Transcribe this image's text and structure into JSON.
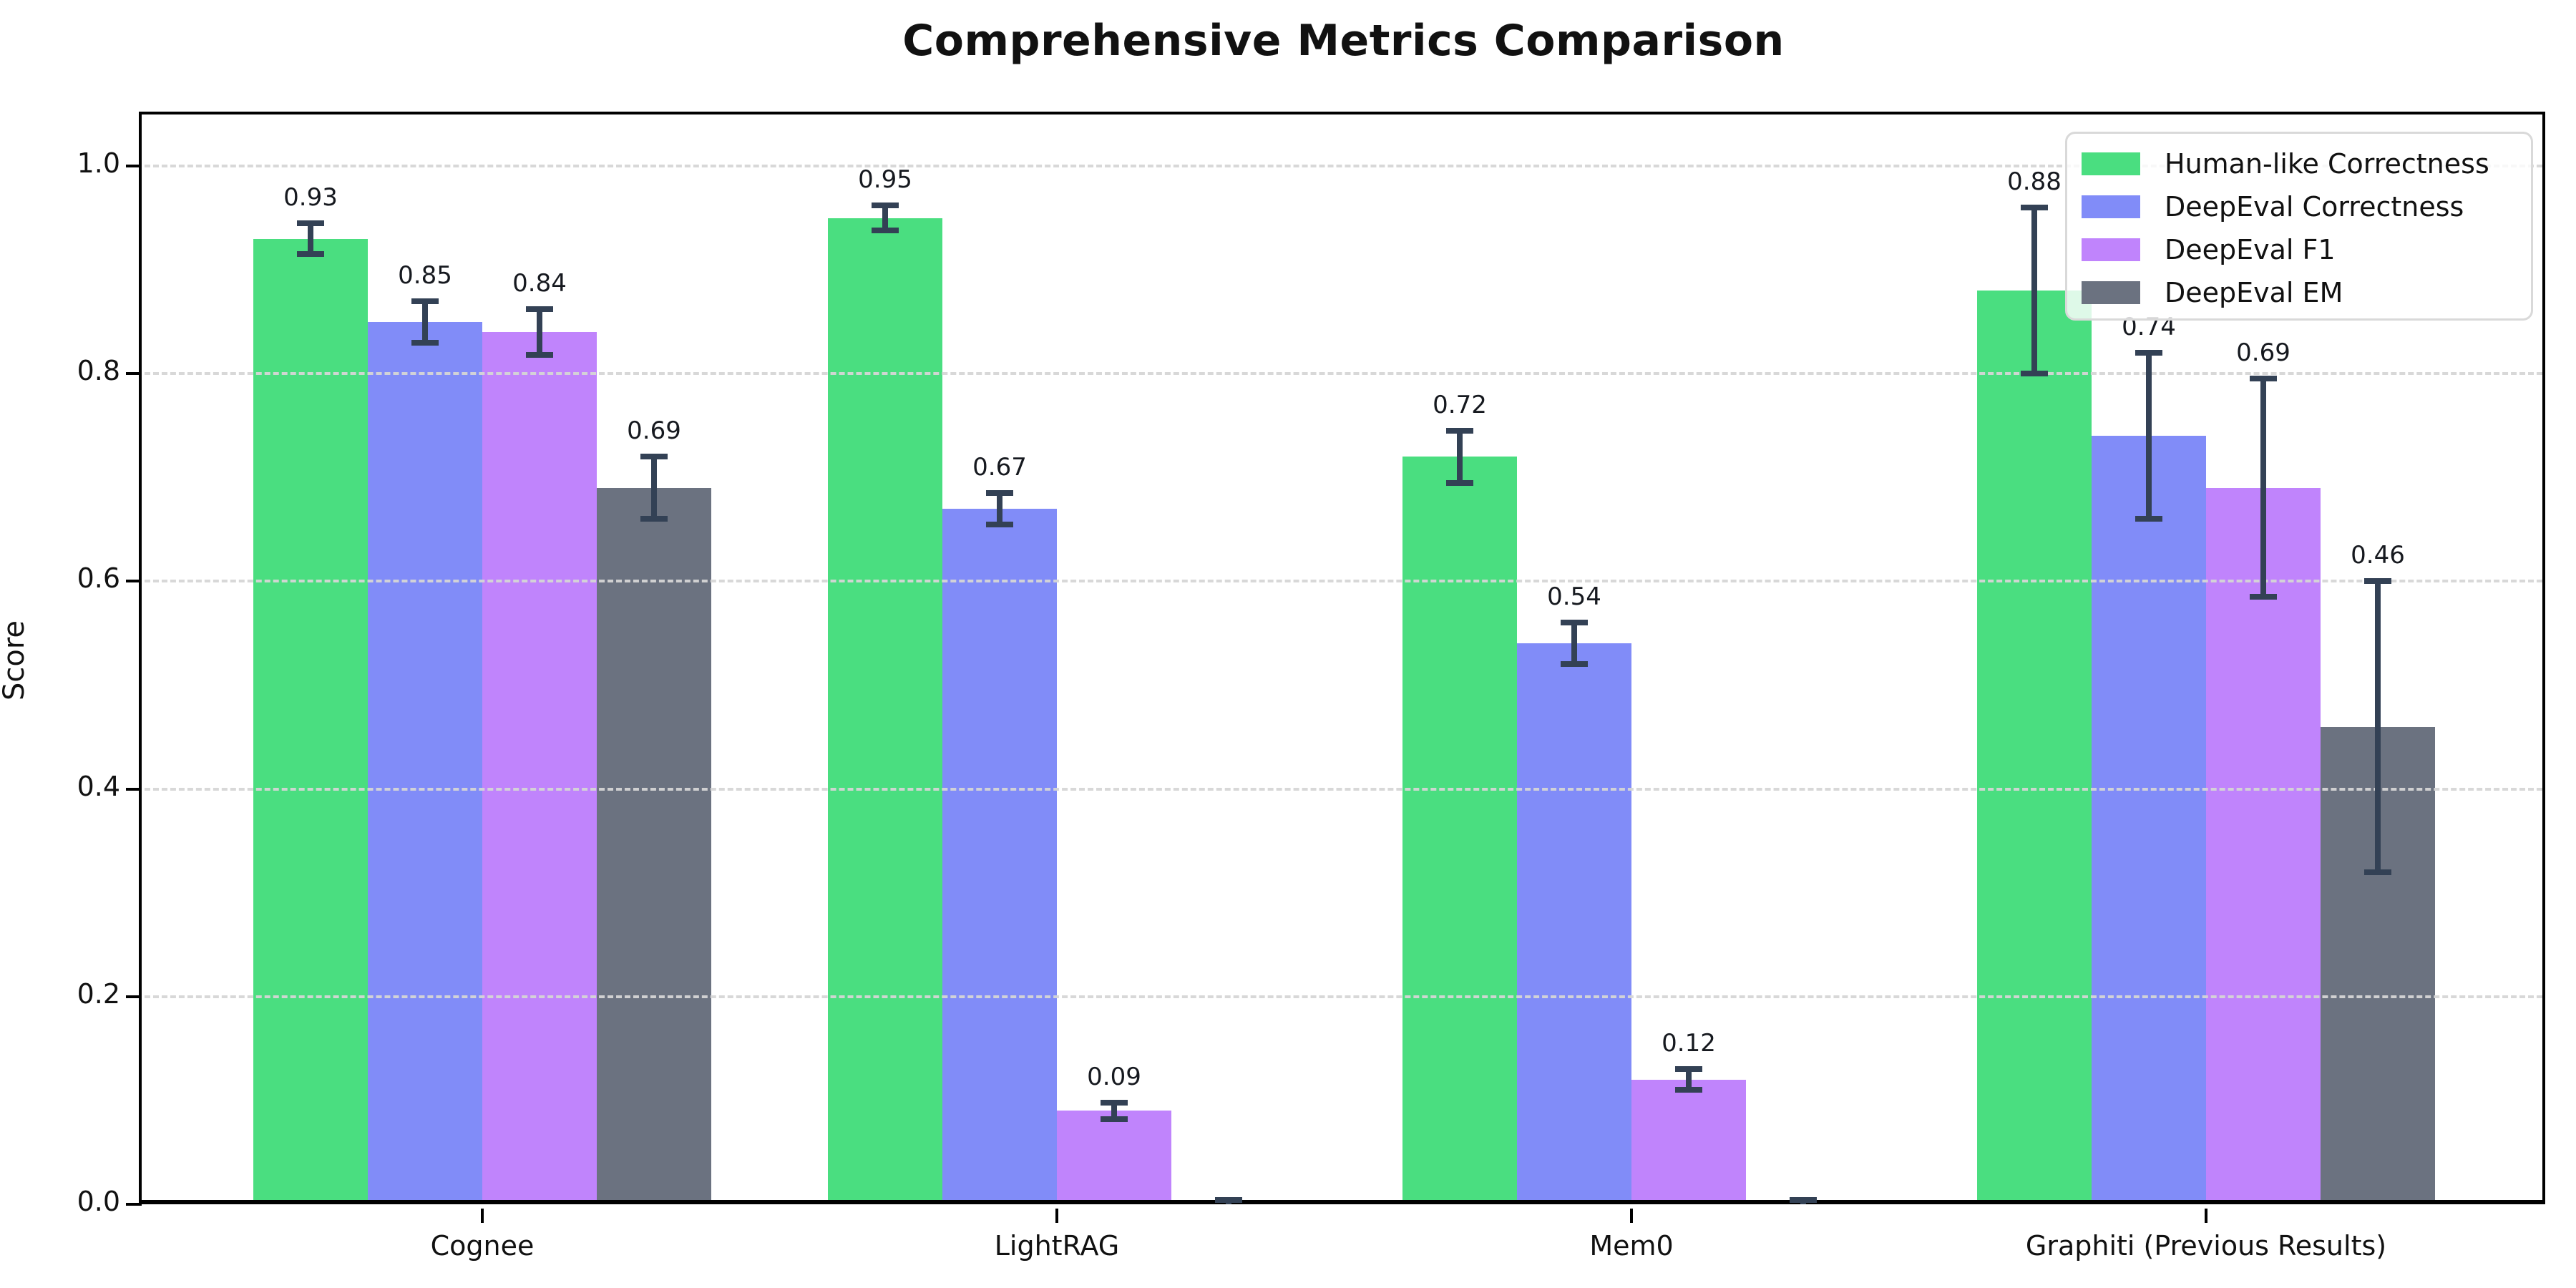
{
  "title": "Comprehensive Metrics Comparison",
  "chart_data": {
    "type": "bar",
    "title": "Comprehensive Metrics Comparison",
    "xlabel": "",
    "ylabel": "Score",
    "ylim": [
      0,
      1.05
    ],
    "yticks": [
      0.0,
      0.2,
      0.4,
      0.6,
      0.8,
      1.0
    ],
    "ytick_labels": [
      "0.0",
      "0.2",
      "0.4",
      "0.6",
      "0.8",
      "1.0"
    ],
    "grid": "horizontal-dashed",
    "grid_over_bars": true,
    "legend_position": "upper-right",
    "error_bar_color": "#334155",
    "categories": [
      "Cognee",
      "LightRAG",
      "Mem0",
      "Graphiti (Previous Results)"
    ],
    "series": [
      {
        "name": "Human-like Correctness",
        "color": "#4ade80",
        "values": [
          0.93,
          0.95,
          0.72,
          0.88
        ],
        "errors": [
          0.015,
          0.012,
          0.025,
          0.08
        ],
        "labels": [
          "0.93",
          "0.95",
          "0.72",
          "0.88"
        ]
      },
      {
        "name": "DeepEval Correctness",
        "color": "#818cf8",
        "values": [
          0.85,
          0.67,
          0.54,
          0.74
        ],
        "errors": [
          0.02,
          0.015,
          0.02,
          0.08
        ],
        "labels": [
          "0.85",
          "0.67",
          "0.54",
          "0.74"
        ]
      },
      {
        "name": "DeepEval F1",
        "color": "#c084fc",
        "values": [
          0.84,
          0.09,
          0.12,
          0.69
        ],
        "errors": [
          0.022,
          0.008,
          0.01,
          0.105
        ],
        "labels": [
          "0.84",
          "0.09",
          "0.12",
          "0.69"
        ]
      },
      {
        "name": "DeepEval EM",
        "color": "#6b7280",
        "values": [
          0.69,
          0.0,
          0.0,
          0.46
        ],
        "errors": [
          0.03,
          0.004,
          0.004,
          0.14
        ],
        "labels": [
          "0.69",
          null,
          null,
          "0.46"
        ]
      }
    ]
  }
}
